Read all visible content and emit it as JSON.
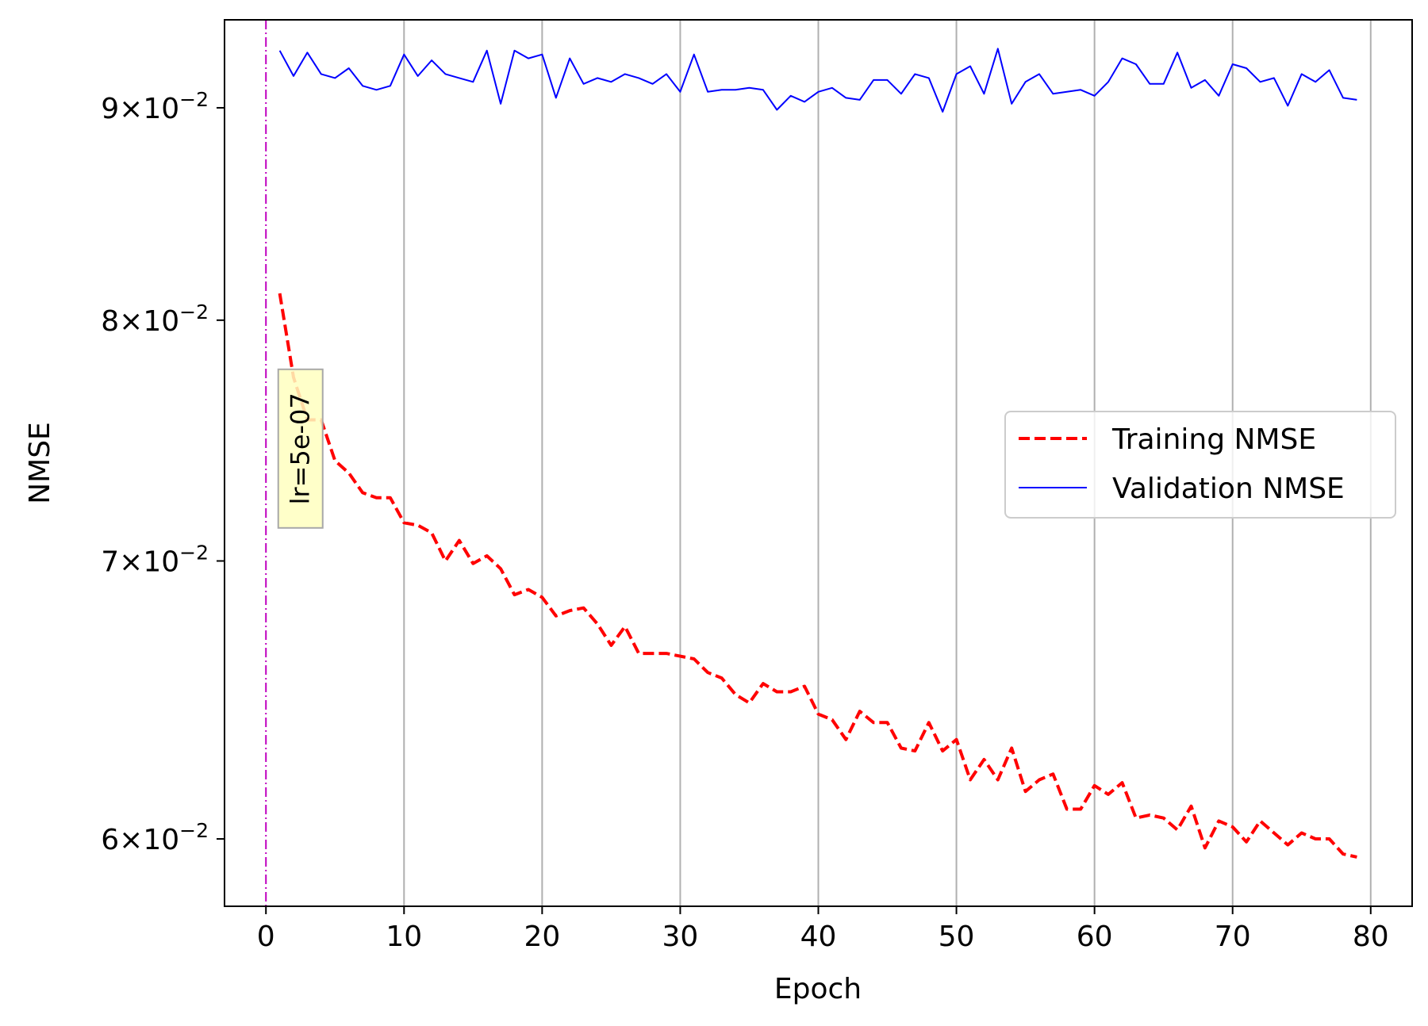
{
  "chart_data": {
    "type": "line",
    "title": "",
    "xlabel": "Epoch",
    "ylabel": "NMSE",
    "xlim": [
      -3,
      83
    ],
    "ylim": [
      0.0578,
      0.0945
    ],
    "yscale": "log",
    "grid": "vertical",
    "xticks": [
      0,
      10,
      20,
      30,
      40,
      50,
      60,
      70,
      80
    ],
    "xtick_labels": [
      "0",
      "10",
      "20",
      "30",
      "40",
      "50",
      "60",
      "70",
      "80"
    ],
    "yticks": [
      {
        "value": 0.09,
        "mantissa": "9",
        "base": "10",
        "exp": "−2"
      },
      {
        "value": 0.08,
        "mantissa": "8",
        "base": "10",
        "exp": "−2"
      },
      {
        "value": 0.07,
        "mantissa": "7",
        "base": "10",
        "exp": "−2"
      },
      {
        "value": 0.06,
        "mantissa": "6",
        "base": "10",
        "exp": "−2"
      }
    ],
    "legend": {
      "position": "center-right"
    },
    "series": [
      {
        "name": "Training NMSE",
        "color": "#ff0000",
        "style": "dashed",
        "x": [
          1,
          2,
          3,
          4,
          5,
          6,
          7,
          8,
          9,
          10,
          11,
          12,
          13,
          14,
          15,
          16,
          17,
          18,
          19,
          20,
          21,
          22,
          23,
          24,
          25,
          26,
          27,
          28,
          29,
          30,
          31,
          32,
          33,
          34,
          35,
          36,
          37,
          38,
          39,
          40,
          41,
          42,
          43,
          44,
          45,
          46,
          47,
          48,
          49,
          50,
          51,
          52,
          53,
          54,
          55,
          56,
          57,
          58,
          59,
          60,
          61,
          62,
          63,
          64,
          65,
          66,
          67,
          68,
          69,
          70,
          71,
          72,
          73,
          74,
          75,
          76,
          77,
          78,
          79
        ],
        "values": [
          0.0812,
          0.0775,
          0.0757,
          0.0757,
          0.074,
          0.0735,
          0.0727,
          0.0725,
          0.0725,
          0.0715,
          0.0714,
          0.0711,
          0.07,
          0.0708,
          0.0699,
          0.0702,
          0.0697,
          0.0687,
          0.0689,
          0.0686,
          0.0679,
          0.0681,
          0.0682,
          0.0676,
          0.0668,
          0.0675,
          0.0665,
          0.0665,
          0.0665,
          0.0664,
          0.0663,
          0.0658,
          0.0656,
          0.065,
          0.0647,
          0.0654,
          0.0651,
          0.0651,
          0.0653,
          0.0643,
          0.0641,
          0.0634,
          0.0644,
          0.064,
          0.064,
          0.0631,
          0.063,
          0.064,
          0.063,
          0.0634,
          0.062,
          0.0627,
          0.062,
          0.0631,
          0.0616,
          0.062,
          0.0622,
          0.061,
          0.061,
          0.0618,
          0.0615,
          0.0619,
          0.0607,
          0.0608,
          0.0607,
          0.0603,
          0.0611,
          0.0597,
          0.0606,
          0.0604,
          0.0599,
          0.0606,
          0.0602,
          0.0598,
          0.0602,
          0.06,
          0.06,
          0.0595,
          0.0594
        ]
      },
      {
        "name": "Validation NMSE",
        "color": "#0000ff",
        "style": "solid",
        "x": [
          1,
          2,
          3,
          4,
          5,
          6,
          7,
          8,
          9,
          10,
          11,
          12,
          13,
          14,
          15,
          16,
          17,
          18,
          19,
          20,
          21,
          22,
          23,
          24,
          25,
          26,
          27,
          28,
          29,
          30,
          31,
          32,
          33,
          34,
          35,
          36,
          37,
          38,
          39,
          40,
          41,
          42,
          43,
          44,
          45,
          46,
          47,
          48,
          49,
          50,
          51,
          52,
          53,
          54,
          55,
          56,
          57,
          58,
          59,
          60,
          61,
          62,
          63,
          64,
          65,
          66,
          67,
          68,
          69,
          70,
          71,
          72,
          73,
          74,
          75,
          76,
          77,
          78,
          79
        ],
        "values": [
          0.0929,
          0.0916,
          0.0928,
          0.0917,
          0.0915,
          0.092,
          0.0911,
          0.0909,
          0.0911,
          0.0927,
          0.0916,
          0.0924,
          0.0917,
          0.0915,
          0.0913,
          0.0929,
          0.0902,
          0.0929,
          0.0925,
          0.0927,
          0.0905,
          0.0925,
          0.0912,
          0.0915,
          0.0913,
          0.0917,
          0.0915,
          0.0912,
          0.0917,
          0.0908,
          0.0927,
          0.0908,
          0.0909,
          0.0909,
          0.091,
          0.0909,
          0.0899,
          0.0906,
          0.0903,
          0.0908,
          0.091,
          0.0905,
          0.0904,
          0.0914,
          0.0914,
          0.0907,
          0.0917,
          0.0915,
          0.0898,
          0.0917,
          0.0921,
          0.0907,
          0.093,
          0.0902,
          0.0913,
          0.0917,
          0.0907,
          0.0908,
          0.0909,
          0.0906,
          0.0913,
          0.0925,
          0.0922,
          0.0912,
          0.0912,
          0.0928,
          0.091,
          0.0914,
          0.0906,
          0.0922,
          0.092,
          0.0913,
          0.0915,
          0.0901,
          0.0917,
          0.0913,
          0.0919,
          0.0905,
          0.0904
        ]
      }
    ],
    "vline": {
      "x": 0,
      "color": "#bf00bf",
      "style": "dashdot"
    },
    "annotations": [
      {
        "text": "lr=5e-07",
        "x": 2.5,
        "y": 0.0745,
        "rotation": -90,
        "box_color": "#ffffbf"
      }
    ]
  }
}
